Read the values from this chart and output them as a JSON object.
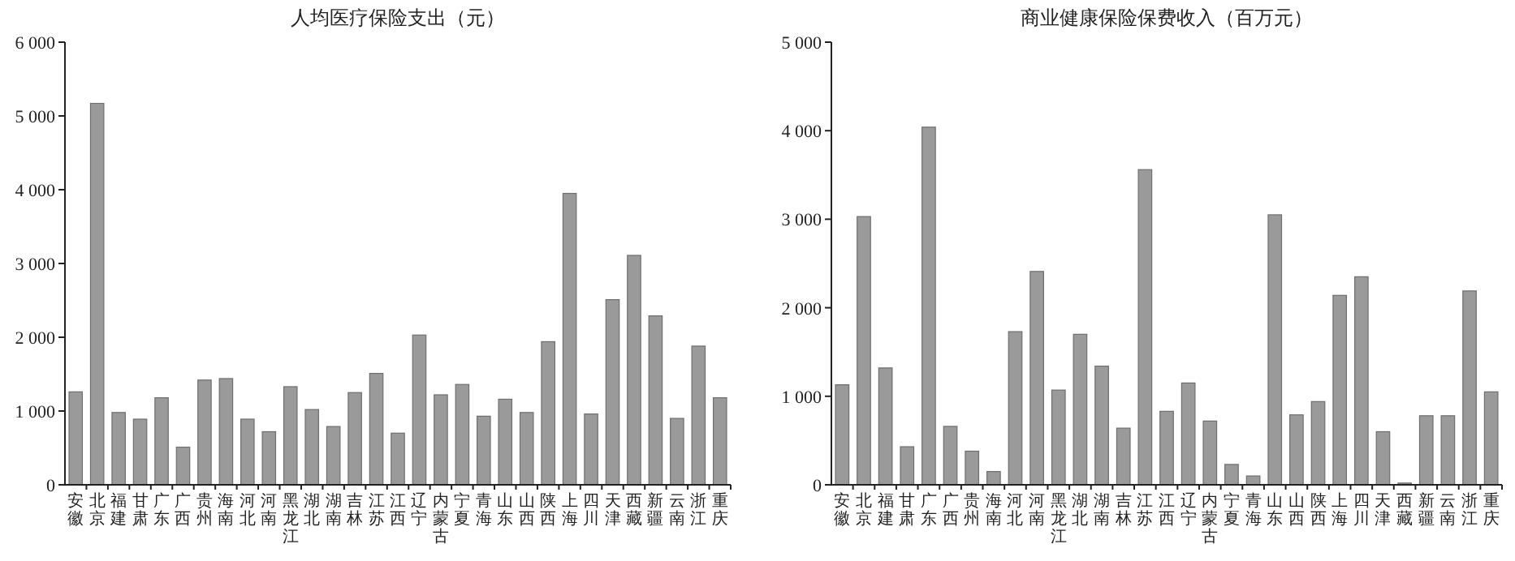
{
  "chart_data": [
    {
      "type": "bar",
      "title": "人均医疗保险支出（元）",
      "categories": [
        "安徽",
        "北京",
        "福建",
        "甘肃",
        "广东",
        "广西",
        "贵州",
        "海南",
        "河北",
        "河南",
        "黑龙江",
        "湖北",
        "湖南",
        "吉林",
        "江苏",
        "江西",
        "辽宁",
        "内蒙古",
        "宁夏",
        "青海",
        "山东",
        "山西",
        "陕西",
        "上海",
        "四川",
        "天津",
        "西藏",
        "新疆",
        "云南",
        "浙江",
        "重庆"
      ],
      "values": [
        1260,
        5170,
        980,
        890,
        1180,
        510,
        1420,
        1440,
        890,
        720,
        1330,
        1020,
        790,
        1250,
        1510,
        700,
        2030,
        1220,
        1360,
        930,
        1160,
        980,
        1940,
        3950,
        960,
        2510,
        3110,
        2290,
        900,
        1880,
        1180
      ],
      "color": "#9a9a9a",
      "ylim": [
        0,
        6000
      ],
      "yticks": [
        0,
        {
          "value": 1000,
          "label": "1 000"
        },
        {
          "value": 2000,
          "label": "2 000"
        },
        {
          "value": 3000,
          "label": "3 000"
        },
        {
          "value": 4000,
          "label": "4 000"
        },
        {
          "value": 5000,
          "label": "5 000"
        },
        {
          "value": 6000,
          "label": "6 000"
        }
      ]
    },
    {
      "type": "bar",
      "title": "商业健康保险保费收入（百万元）",
      "categories": [
        "安徽",
        "北京",
        "福建",
        "甘肃",
        "广东",
        "广西",
        "贵州",
        "海南",
        "河北",
        "河南",
        "黑龙江",
        "湖北",
        "湖南",
        "吉林",
        "江苏",
        "江西",
        "辽宁",
        "内蒙古",
        "宁夏",
        "青海",
        "山东",
        "山西",
        "陕西",
        "上海",
        "四川",
        "天津",
        "西藏",
        "新疆",
        "云南",
        "浙江",
        "重庆"
      ],
      "values": [
        1130,
        3030,
        1320,
        430,
        4040,
        660,
        380,
        150,
        1730,
        2410,
        1070,
        1700,
        1340,
        640,
        3560,
        830,
        1150,
        720,
        230,
        100,
        3050,
        790,
        940,
        2140,
        2350,
        600,
        20,
        780,
        780,
        2190,
        1050
      ],
      "color": "#9a9a9a",
      "ylim": [
        0,
        5000
      ],
      "yticks": [
        0,
        {
          "value": 1000,
          "label": "1 000"
        },
        {
          "value": 2000,
          "label": "2 000"
        },
        {
          "value": 3000,
          "label": "3 000"
        },
        {
          "value": 4000,
          "label": "4 000"
        },
        {
          "value": 5000,
          "label": "5 000"
        }
      ]
    }
  ]
}
